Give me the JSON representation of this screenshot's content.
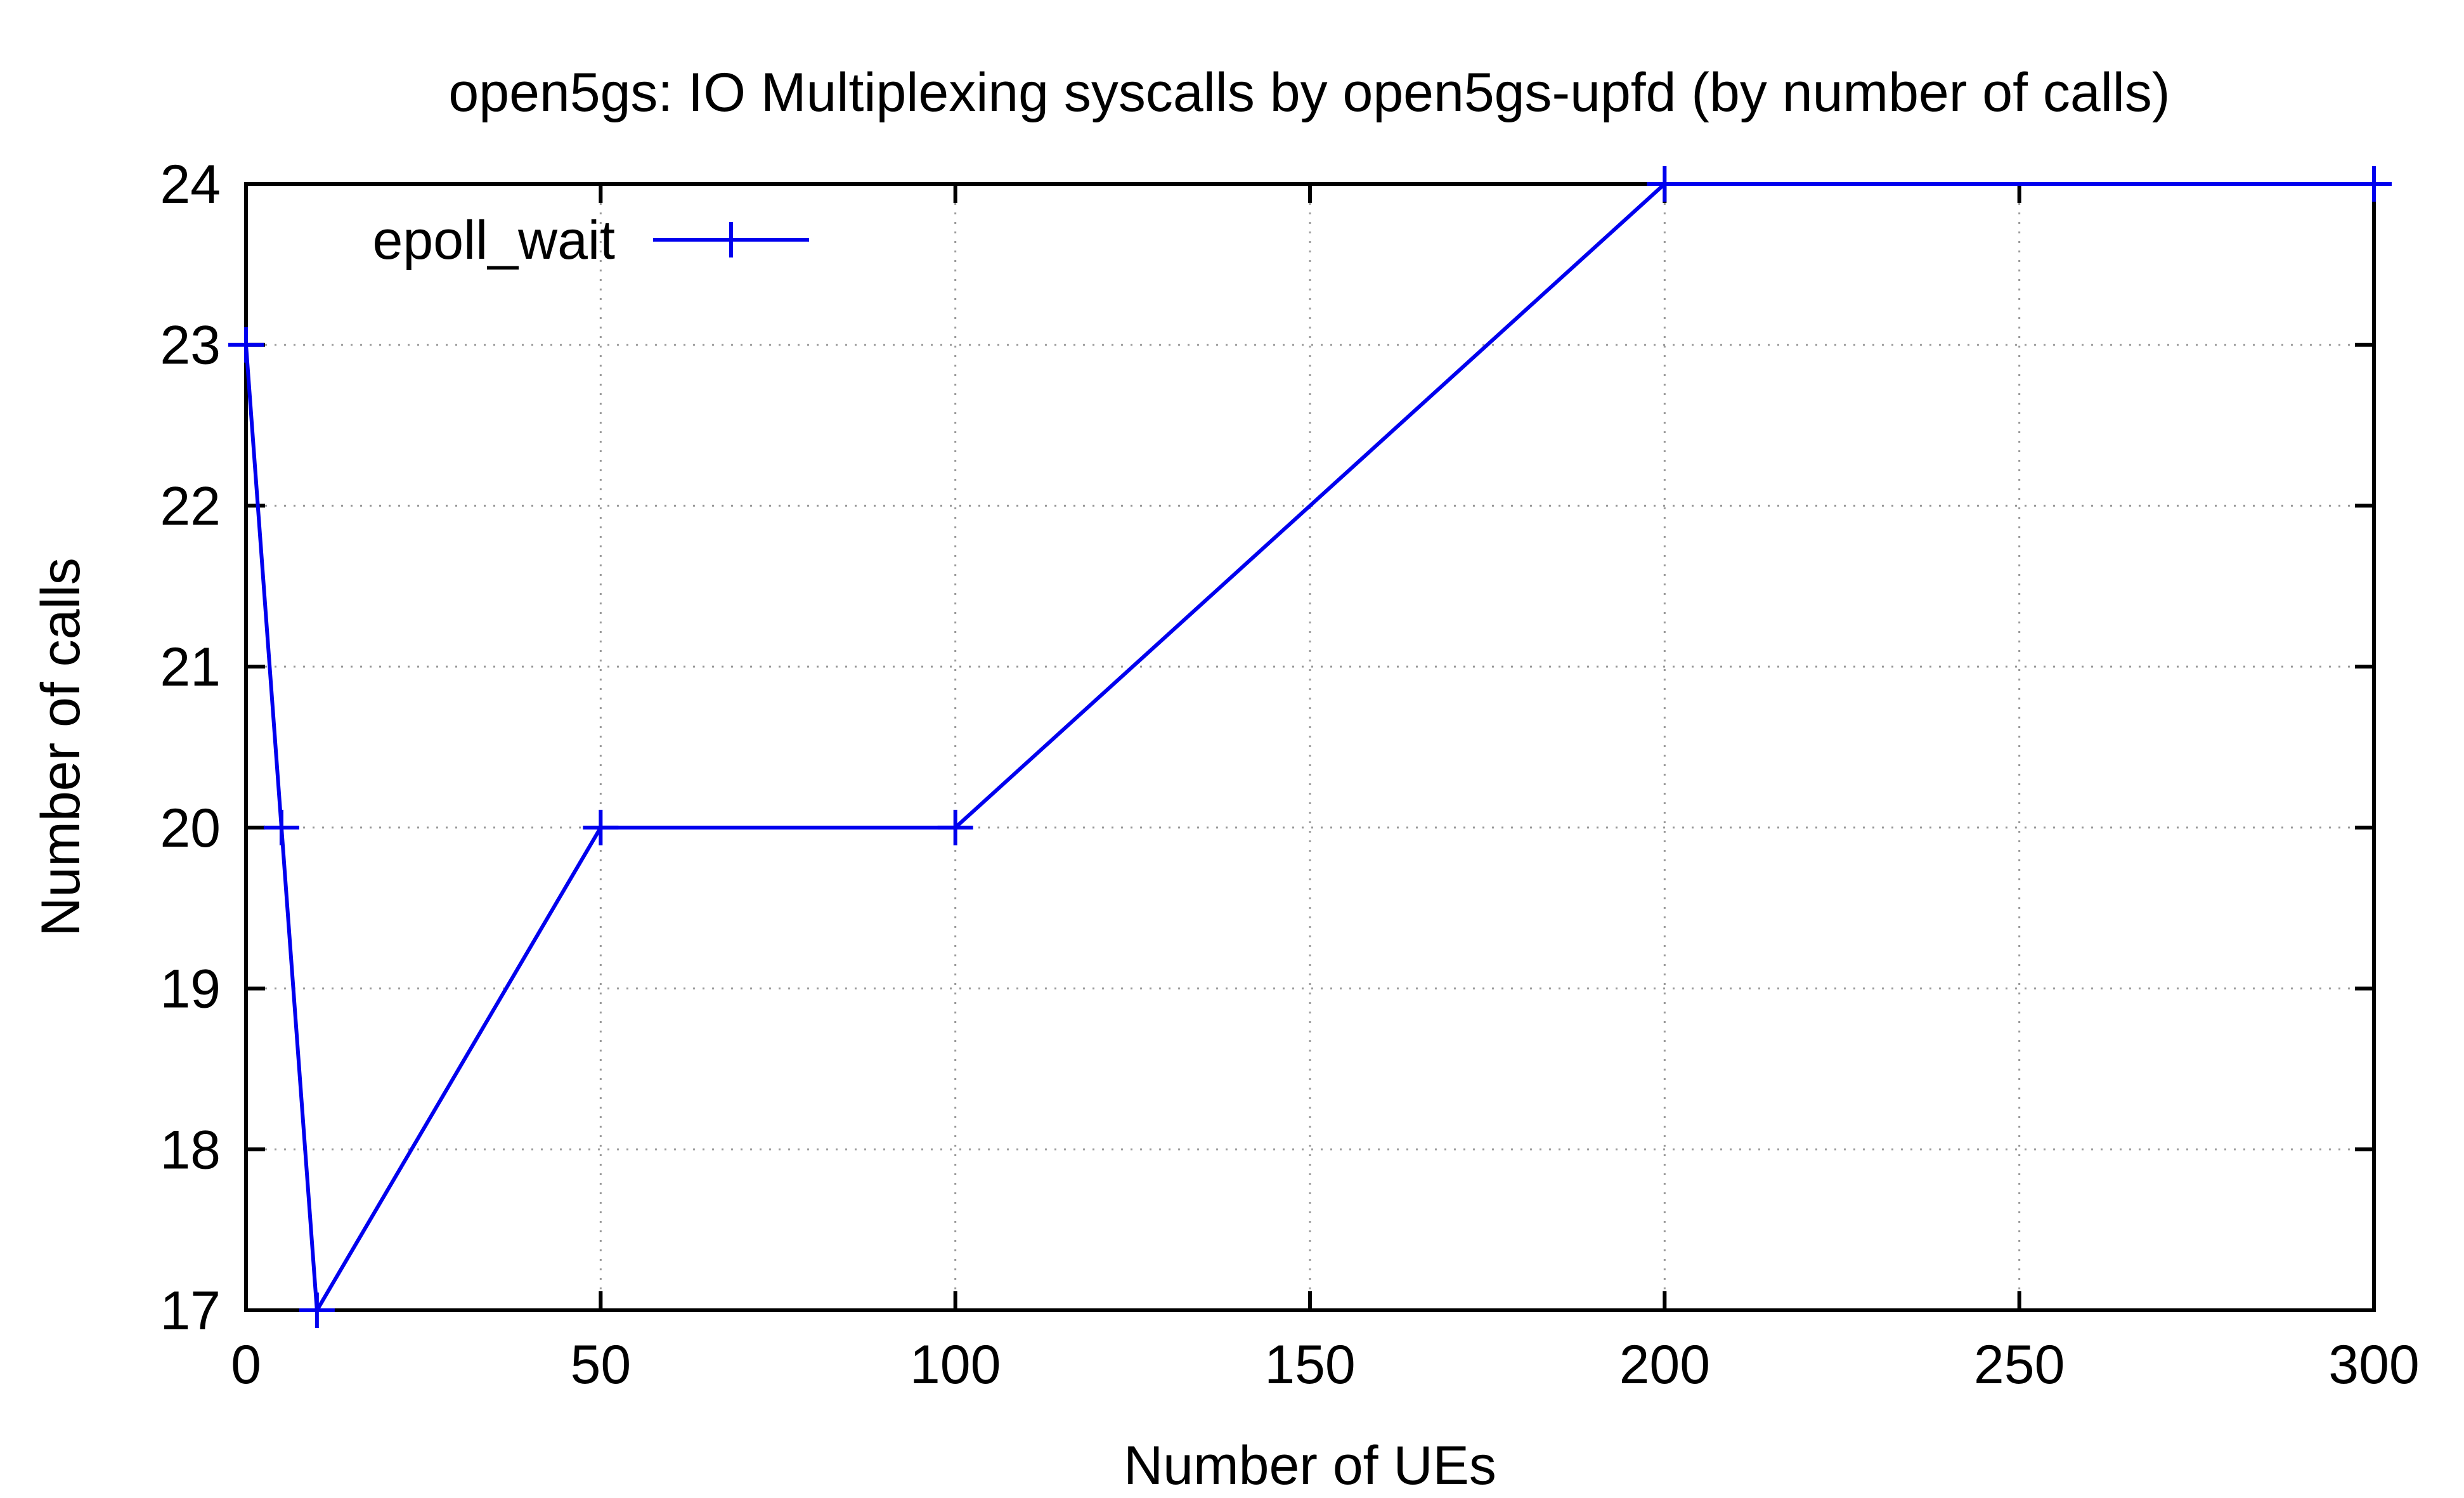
{
  "chart_data": {
    "type": "line",
    "title": "open5gs: IO Multiplexing syscalls by open5gs-upfd (by number of calls)",
    "xlabel": "Number of UEs",
    "ylabel": "Number of calls",
    "xlim": [
      0,
      300
    ],
    "ylim": [
      17,
      24
    ],
    "xticks": [
      0,
      50,
      100,
      150,
      200,
      250,
      300
    ],
    "yticks": [
      17,
      18,
      19,
      20,
      21,
      22,
      23,
      24
    ],
    "grid": true,
    "legend_position": "top-left",
    "series": [
      {
        "name": "epoll_wait",
        "color": "#0000ee",
        "marker": "plus",
        "x": [
          0,
          5,
          10,
          50,
          100,
          200,
          300
        ],
        "y": [
          23,
          20,
          17,
          20,
          20,
          24,
          24
        ]
      }
    ]
  }
}
